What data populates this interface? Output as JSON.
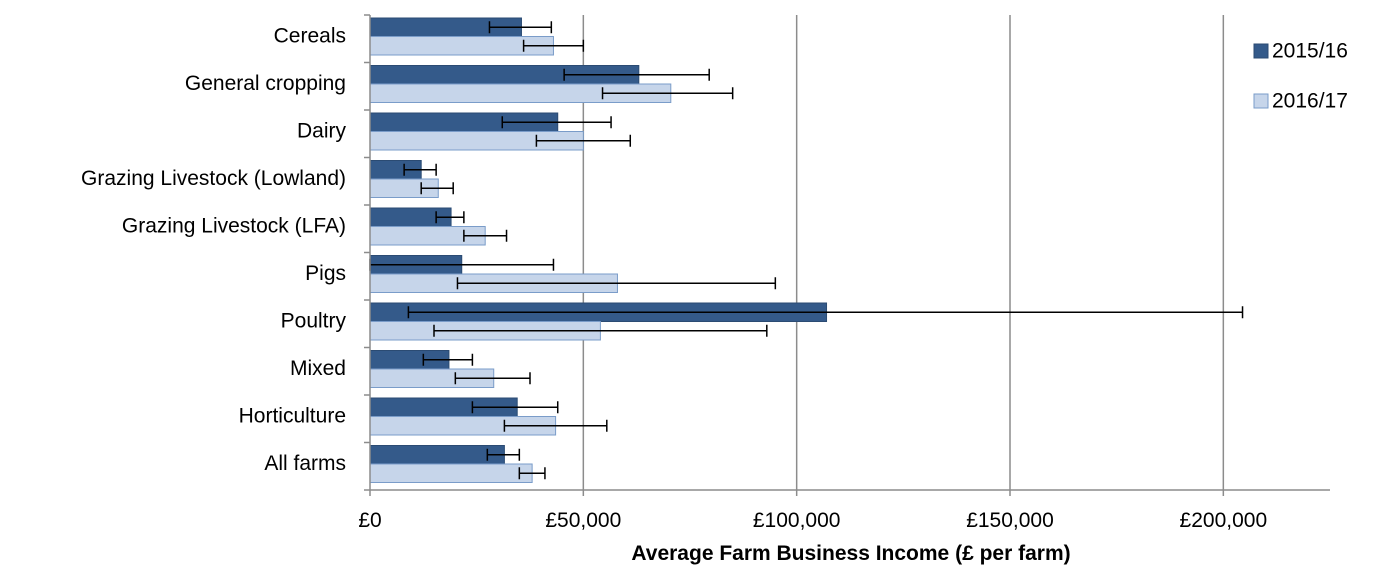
{
  "chart_data": {
    "type": "bar",
    "orientation": "horizontal",
    "xlabel": "Average Farm Business Income (£ per farm)",
    "ylabel": "",
    "xlim": [
      0,
      225000
    ],
    "xticks": [
      0,
      50000,
      100000,
      150000,
      200000
    ],
    "xtick_labels": [
      "£0",
      "£50,000",
      "£100,000",
      "£150,000",
      "£200,000"
    ],
    "grid": "vertical",
    "legend_position": "right",
    "categories": [
      "Cereals",
      "General cropping",
      "Dairy",
      "Grazing Livestock (Lowland)",
      "Grazing Livestock (LFA)",
      "Pigs",
      "Poultry",
      "Mixed",
      "Horticulture",
      "All farms"
    ],
    "series": [
      {
        "name": "2015/16",
        "color": "#345a8a",
        "border": "#2b4b73",
        "values": [
          35500,
          63000,
          44000,
          12000,
          19000,
          21500,
          107000,
          18500,
          34500,
          31500
        ],
        "err_low": [
          28000,
          45500,
          31000,
          8000,
          15500,
          0,
          9000,
          12500,
          24000,
          27500
        ],
        "err_high": [
          42500,
          79500,
          56500,
          15500,
          22000,
          43000,
          204500,
          24000,
          44000,
          35000
        ]
      },
      {
        "name": "2016/17",
        "color": "#c6d5ea",
        "border": "#7a9cc9",
        "values": [
          43000,
          70500,
          50000,
          16000,
          27000,
          58000,
          54000,
          29000,
          43500,
          38000
        ],
        "err_low": [
          36000,
          54500,
          39000,
          12000,
          22000,
          20500,
          15000,
          20000,
          31500,
          35000
        ],
        "err_high": [
          50000,
          85000,
          61000,
          19500,
          32000,
          95000,
          93000,
          37500,
          55500,
          41000
        ]
      }
    ]
  }
}
